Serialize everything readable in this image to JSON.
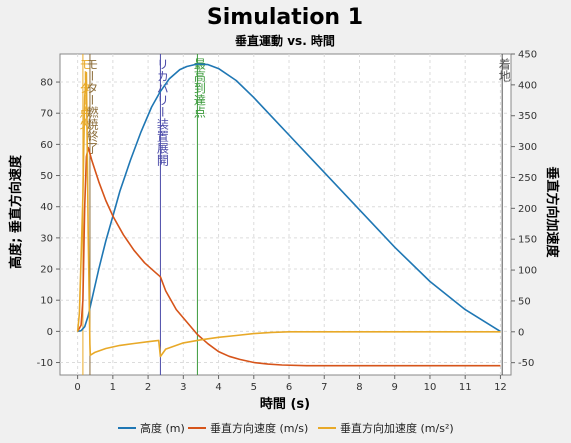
{
  "chart_data": {
    "type": "line",
    "title": "Simulation 1",
    "subtitle": "垂直運動 vs. 時間",
    "xlabel": "時間 (s)",
    "ylabel_left": "高度; 垂直方向速度",
    "ylabel_right": "垂直方向加速度",
    "xlim": [
      -0.5,
      12.3
    ],
    "ylim_left": [
      -14,
      89
    ],
    "ylim_right": [
      -70,
      450
    ],
    "x_ticks": [
      0,
      1,
      2,
      3,
      4,
      5,
      6,
      7,
      8,
      9,
      10,
      11,
      12
    ],
    "y_left_ticks": [
      -10,
      0,
      10,
      20,
      30,
      40,
      50,
      60,
      70,
      80
    ],
    "y_right_ticks": [
      -50,
      0,
      50,
      100,
      150,
      200,
      250,
      300,
      350,
      400,
      450
    ],
    "grid": true,
    "legend_position": "bottom",
    "series": [
      {
        "name": "高度 (m)",
        "color": "#1f77b4",
        "axis": "left",
        "x": [
          0,
          0.1,
          0.2,
          0.3,
          0.4,
          0.6,
          0.8,
          1.0,
          1.2,
          1.5,
          1.8,
          2.1,
          2.35,
          2.6,
          2.9,
          3.1,
          3.4,
          3.7,
          4.0,
          4.5,
          5.0,
          5.5,
          6.0,
          6.5,
          7.0,
          8.0,
          9.0,
          10.0,
          11.0,
          12.0
        ],
        "y": [
          0,
          0.2,
          1.5,
          5,
          10,
          20,
          29,
          37,
          45,
          55,
          64,
          72,
          77,
          81,
          84,
          85,
          85.8,
          85.6,
          84.3,
          80.5,
          75,
          69,
          63,
          57,
          51,
          39,
          27,
          16,
          7,
          0
        ]
      },
      {
        "name": "垂直方向速度 (m/s)",
        "color": "#d6541a",
        "axis": "left",
        "x": [
          0,
          0.1,
          0.15,
          0.2,
          0.25,
          0.3,
          0.4,
          0.6,
          0.8,
          1.0,
          1.3,
          1.6,
          1.9,
          2.2,
          2.35,
          2.5,
          2.8,
          3.1,
          3.4,
          3.7,
          4.0,
          4.3,
          4.6,
          5.0,
          5.4,
          5.8,
          6.5,
          8.0,
          10.0,
          12.0
        ],
        "y": [
          0,
          2,
          10,
          40,
          56,
          59,
          55,
          48,
          42,
          37,
          31,
          26,
          22,
          19,
          17.5,
          13,
          7,
          3,
          -1,
          -4,
          -6.5,
          -8,
          -9,
          -10,
          -10.5,
          -10.8,
          -11,
          -11,
          -11,
          -11
        ]
      },
      {
        "name": "垂直方向加速度 (m/s²)",
        "color": "#e8a928",
        "axis": "right",
        "x": [
          0,
          0.05,
          0.1,
          0.15,
          0.2,
          0.25,
          0.3,
          0.35,
          0.36,
          0.5,
          0.8,
          1.2,
          1.6,
          2.0,
          2.3,
          2.35,
          2.5,
          3.0,
          3.5,
          4.0,
          4.5,
          5.0,
          5.5,
          6.0,
          7.0,
          8.0,
          10.0,
          12.0
        ],
        "y": [
          0,
          30,
          120,
          220,
          380,
          420,
          160,
          -20,
          -38,
          -33,
          -27,
          -22,
          -19,
          -16,
          -14,
          -40,
          -28,
          -18,
          -13,
          -9,
          -6,
          -3,
          -1,
          0,
          0,
          0,
          0,
          0
        ]
      }
    ],
    "events": [
      {
        "label": "モーター点火",
        "x": 0.15,
        "color": "#e8a928"
      },
      {
        "label": "モーター燃焼終了",
        "x": 0.35,
        "color": "#8c6d3a"
      },
      {
        "label": "リカバリー装置展開",
        "x": 2.35,
        "color": "#4a4aa8"
      },
      {
        "label": "最高到達点",
        "x": 3.4,
        "color": "#3a9a3a"
      },
      {
        "label": "着地",
        "x": 12.05,
        "color": "#555555"
      }
    ]
  }
}
